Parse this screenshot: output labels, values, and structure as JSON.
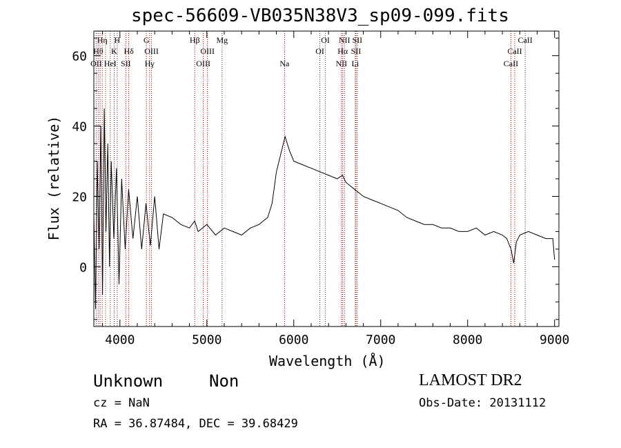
{
  "chart_data": {
    "type": "line",
    "title": "spec-56609-VB035N38V3_sp09-099.fits",
    "xlabel": "Wavelength (Å)",
    "ylabel": "Flux (relative)",
    "xlim": [
      3700,
      9050
    ],
    "ylim": [
      -17,
      67
    ],
    "xticks": [
      4000,
      5000,
      6000,
      7000,
      8000,
      9000
    ],
    "xtick_labels": [
      "4000",
      "5000",
      "6000",
      "7000",
      "8000",
      "9000"
    ],
    "yticks": [
      0,
      20,
      40,
      60
    ],
    "ytick_labels": [
      "0",
      "20",
      "40",
      "60"
    ],
    "grid": false,
    "line_color": "#000000",
    "marker_color": "#8b0000",
    "series": [
      {
        "x": [
          3700,
          3720,
          3740,
          3760,
          3780,
          3800,
          3820,
          3840,
          3860,
          3880,
          3900,
          3930,
          3960,
          3990,
          4020,
          4060,
          4100,
          4150,
          4200,
          4250,
          4300,
          4350,
          4400,
          4450,
          4500,
          4600,
          4700,
          4800,
          4860,
          4900,
          5000,
          5100,
          5200,
          5300,
          5400,
          5500,
          5600,
          5700,
          5750,
          5800,
          5850,
          5900,
          5950,
          6000,
          6100,
          6200,
          6300,
          6400,
          6500,
          6560,
          6600,
          6700,
          6800,
          6900,
          7000,
          7100,
          7200,
          7300,
          7400,
          7500,
          7600,
          7700,
          7800,
          7900,
          8000,
          8100,
          8200,
          8300,
          8400,
          8450,
          8500,
          8530,
          8560,
          8600,
          8700,
          8800,
          8900,
          8980,
          9000
        ],
        "y": [
          15,
          -12,
          30,
          5,
          40,
          -8,
          45,
          10,
          35,
          0,
          30,
          8,
          28,
          -5,
          25,
          5,
          22,
          8,
          20,
          5,
          18,
          6,
          20,
          5,
          15,
          14,
          12,
          11,
          13,
          10,
          12,
          9,
          11,
          10,
          9,
          11,
          12,
          14,
          18,
          27,
          32,
          37,
          33,
          30,
          29,
          28,
          27,
          26,
          25,
          26,
          24,
          22,
          20,
          19,
          18,
          17,
          16,
          14,
          13,
          12,
          12,
          11,
          11,
          10,
          10,
          11,
          9,
          10,
          9,
          8,
          5,
          1,
          7,
          9,
          10,
          9,
          8,
          8,
          2
        ]
      }
    ],
    "line_markers": [
      {
        "wave": 3727,
        "label": "OII",
        "row": 3
      },
      {
        "wave": 3750,
        "label": "Hθ",
        "row": 2
      },
      {
        "wave": 3771,
        "label": "",
        "row": 0
      },
      {
        "wave": 3797,
        "label": "Hη",
        "row": 1
      },
      {
        "wave": 3835,
        "label": "",
        "row": 0
      },
      {
        "wave": 3889,
        "label": "HeI",
        "row": 3
      },
      {
        "wave": 3934,
        "label": "K",
        "row": 2
      },
      {
        "wave": 3969,
        "label": "H",
        "row": 1
      },
      {
        "wave": 4068,
        "label": "SII",
        "row": 3
      },
      {
        "wave": 4102,
        "label": "Hδ",
        "row": 2
      },
      {
        "wave": 4305,
        "label": "G",
        "row": 1
      },
      {
        "wave": 4341,
        "label": "Hγ",
        "row": 3
      },
      {
        "wave": 4363,
        "label": "OIII",
        "row": 2
      },
      {
        "wave": 4861,
        "label": "Hβ",
        "row": 1
      },
      {
        "wave": 4959,
        "label": "OIII",
        "row": 3
      },
      {
        "wave": 5007,
        "label": "OIII",
        "row": 2
      },
      {
        "wave": 5175,
        "label": "Mg",
        "row": 1
      },
      {
        "wave": 5894,
        "label": "Na",
        "row": 3
      },
      {
        "wave": 6300,
        "label": "OI",
        "row": 2
      },
      {
        "wave": 6364,
        "label": "OI",
        "row": 1
      },
      {
        "wave": 6548,
        "label": "NII",
        "row": 3
      },
      {
        "wave": 6563,
        "label": "Hα",
        "row": 2
      },
      {
        "wave": 6583,
        "label": "NII",
        "row": 1
      },
      {
        "wave": 6707,
        "label": "Li",
        "row": 3
      },
      {
        "wave": 6716,
        "label": "SII",
        "row": 2
      },
      {
        "wave": 6731,
        "label": "SII",
        "row": 1
      },
      {
        "wave": 8498,
        "label": "CaII",
        "row": 3
      },
      {
        "wave": 8542,
        "label": "CaII",
        "row": 2
      },
      {
        "wave": 8662,
        "label": "CaII",
        "row": 1
      }
    ]
  },
  "info": {
    "classification": "Unknown",
    "subclass": "Non",
    "cz": "cz = NaN",
    "coords": "RA =  36.87484, DEC =  39.68429",
    "survey": "LAMOST DR2",
    "obsdate": "Obs-Date: 20131112"
  }
}
